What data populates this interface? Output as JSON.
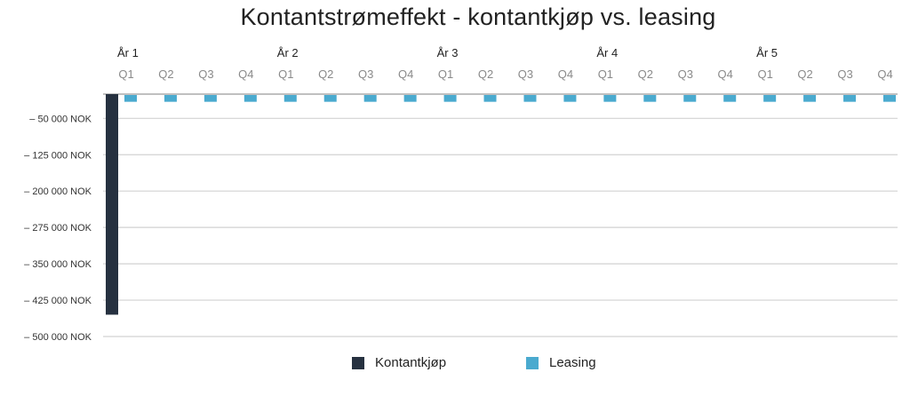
{
  "chart_data": {
    "type": "bar",
    "title": "Kontantstrømeffekt - kontantkjøp vs. leasing",
    "year_labels": [
      "År 1",
      "År 2",
      "År 3",
      "År 4",
      "År 5"
    ],
    "categories": [
      "Q1",
      "Q2",
      "Q3",
      "Q4",
      "Q1",
      "Q2",
      "Q3",
      "Q4",
      "Q1",
      "Q2",
      "Q3",
      "Q4",
      "Q1",
      "Q2",
      "Q3",
      "Q4",
      "Q1",
      "Q2",
      "Q3",
      "Q4"
    ],
    "series": [
      {
        "name": "Kontantkjøp",
        "color": "#263140",
        "values": [
          -455000,
          null,
          null,
          null,
          null,
          null,
          null,
          null,
          null,
          null,
          null,
          null,
          null,
          null,
          null,
          null,
          null,
          null,
          null,
          null
        ]
      },
      {
        "name": "Leasing",
        "color": "#4aaacf",
        "values": [
          -14000,
          -14000,
          -14000,
          -14000,
          -14000,
          -14000,
          -14000,
          -14000,
          -14000,
          -14000,
          -14000,
          -14000,
          -14000,
          -14000,
          -14000,
          -14000,
          -14000,
          -14000,
          -14000,
          -14000
        ]
      }
    ],
    "y_ticks": [
      {
        "value": -50000,
        "label": "– 50 000 NOK"
      },
      {
        "value": -125000,
        "label": "– 125 000 NOK"
      },
      {
        "value": -200000,
        "label": "– 200 000 NOK"
      },
      {
        "value": -275000,
        "label": "– 275 000 NOK"
      },
      {
        "value": -350000,
        "label": "– 350 000 NOK"
      },
      {
        "value": -425000,
        "label": "– 425 000 NOK"
      },
      {
        "value": -500000,
        "label": "– 500 000 NOK"
      }
    ],
    "ylim": [
      -500000,
      0
    ],
    "grid": true,
    "legend_position": "bottom-center"
  }
}
